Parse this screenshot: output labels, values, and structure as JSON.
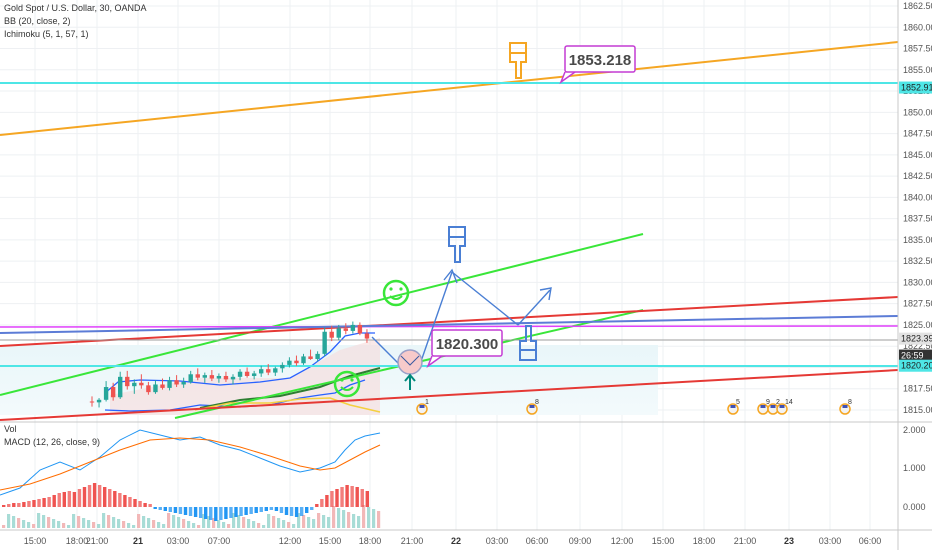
{
  "header": {
    "symbol": "Gold Spot / U.S. Dollar, 30, OANDA",
    "bb": "BB (20, close, 2)",
    "ichimoku": "Ichimoku (5, 1, 57, 1)",
    "vol": "Vol",
    "macd": "MACD (12, 26, close, 9)"
  },
  "price_axis": {
    "ticks": [
      "1862.500",
      "1860.000",
      "1857.500",
      "1855.000",
      "1852.500",
      "1850.000",
      "1847.500",
      "1845.000",
      "1842.500",
      "1840.000",
      "1837.500",
      "1835.000",
      "1832.500",
      "1830.000",
      "1827.500",
      "1825.000",
      "1822.500",
      "1820.000",
      "1817.500",
      "1815.000"
    ],
    "badges": [
      {
        "label": "1852.913",
        "value": 1852.913,
        "color": "#4ee6e6",
        "text": "dark"
      },
      {
        "label": "1823.390",
        "value": 1823.39,
        "color": "#e2e2e2",
        "text": "dark"
      },
      {
        "label": "26:59",
        "value": 1821.4,
        "color": "#333333",
        "text": "light"
      },
      {
        "label": "1820.206",
        "value": 1820.206,
        "color": "#4ee6e6",
        "text": "dark"
      }
    ]
  },
  "macd_axis": {
    "ticks": [
      "2.000",
      "1.000",
      "0.000"
    ]
  },
  "time_axis": {
    "ticks": [
      {
        "label": "15:00",
        "bold": false
      },
      {
        "label": "18:00",
        "bold": false
      },
      {
        "label": "21:00",
        "bold": false
      },
      {
        "label": "21",
        "bold": true
      },
      {
        "label": "03:00",
        "bold": false
      },
      {
        "label": "07:00",
        "bold": false
      },
      {
        "label": "12:00",
        "bold": false
      },
      {
        "label": "15:00",
        "bold": false
      },
      {
        "label": "18:00",
        "bold": false
      },
      {
        "label": "21:00",
        "bold": false
      },
      {
        "label": "22",
        "bold": true
      },
      {
        "label": "03:00",
        "bold": false
      },
      {
        "label": "06:00",
        "bold": false
      },
      {
        "label": "09:00",
        "bold": false
      },
      {
        "label": "12:00",
        "bold": false
      },
      {
        "label": "15:00",
        "bold": false
      },
      {
        "label": "18:00",
        "bold": false
      },
      {
        "label": "21:00",
        "bold": false
      },
      {
        "label": "23",
        "bold": true
      },
      {
        "label": "03:00",
        "bold": false
      },
      {
        "label": "06:00",
        "bold": false
      }
    ]
  },
  "annotations": {
    "callout_top": "1853.218",
    "callout_mid": "1820.300"
  },
  "events": [
    "1",
    "8",
    "5",
    "9",
    "2",
    "14",
    "8"
  ],
  "chart_data": {
    "type": "candlestick",
    "title": "Gold Spot / U.S. Dollar, 30, OANDA",
    "ylim": [
      1814,
      1863
    ],
    "candles": [
      [
        1816.0,
        1816.6,
        1815.4,
        1815.9
      ],
      [
        1815.9,
        1816.4,
        1815.3,
        1816.2
      ],
      [
        1816.2,
        1818.4,
        1816.0,
        1817.7
      ],
      [
        1817.7,
        1818.2,
        1816.1,
        1816.5
      ],
      [
        1816.5,
        1819.5,
        1816.3,
        1818.9
      ],
      [
        1818.9,
        1819.6,
        1817.4,
        1817.8
      ],
      [
        1817.8,
        1818.6,
        1816.9,
        1818.2
      ],
      [
        1818.2,
        1819.2,
        1817.5,
        1817.9
      ],
      [
        1817.9,
        1818.3,
        1816.8,
        1817.1
      ],
      [
        1817.1,
        1818.5,
        1816.9,
        1818.0
      ],
      [
        1818.0,
        1818.7,
        1817.4,
        1817.6
      ],
      [
        1817.6,
        1818.9,
        1817.3,
        1818.5
      ],
      [
        1818.5,
        1819.1,
        1817.7,
        1818.0
      ],
      [
        1818.0,
        1818.8,
        1817.6,
        1818.3
      ],
      [
        1818.3,
        1819.6,
        1818.1,
        1819.2
      ],
      [
        1819.2,
        1819.9,
        1818.5,
        1818.8
      ],
      [
        1818.8,
        1819.4,
        1818.2,
        1819.1
      ],
      [
        1819.1,
        1819.7,
        1818.4,
        1818.7
      ],
      [
        1818.7,
        1819.3,
        1818.2,
        1819.0
      ],
      [
        1819.0,
        1819.5,
        1818.3,
        1818.6
      ],
      [
        1818.6,
        1819.2,
        1818.0,
        1818.9
      ],
      [
        1818.9,
        1819.8,
        1818.5,
        1819.5
      ],
      [
        1819.5,
        1820.0,
        1818.8,
        1819.0
      ],
      [
        1819.0,
        1819.6,
        1818.6,
        1819.3
      ],
      [
        1819.3,
        1820.2,
        1818.9,
        1819.8
      ],
      [
        1819.8,
        1820.4,
        1819.1,
        1819.4
      ],
      [
        1819.4,
        1820.1,
        1819.0,
        1819.9
      ],
      [
        1819.9,
        1820.6,
        1819.4,
        1820.3
      ],
      [
        1820.3,
        1821.2,
        1820.0,
        1820.8
      ],
      [
        1820.8,
        1821.4,
        1820.2,
        1820.5
      ],
      [
        1820.5,
        1821.6,
        1820.3,
        1821.3
      ],
      [
        1821.3,
        1822.1,
        1820.9,
        1821.0
      ],
      [
        1821.0,
        1821.9,
        1820.7,
        1821.6
      ],
      [
        1821.6,
        1824.7,
        1821.3,
        1824.2
      ],
      [
        1824.2,
        1824.9,
        1823.1,
        1823.5
      ],
      [
        1823.5,
        1825.0,
        1823.2,
        1824.6
      ],
      [
        1824.6,
        1825.2,
        1823.9,
        1824.3
      ],
      [
        1824.3,
        1825.4,
        1824.0,
        1825.0
      ],
      [
        1825.0,
        1825.3,
        1823.8,
        1824.0
      ],
      [
        1824.0,
        1824.5,
        1822.9,
        1823.4
      ]
    ],
    "levels": [
      1852.913,
      1820.206
    ],
    "callouts": [
      1853.218,
      1820.3
    ]
  }
}
